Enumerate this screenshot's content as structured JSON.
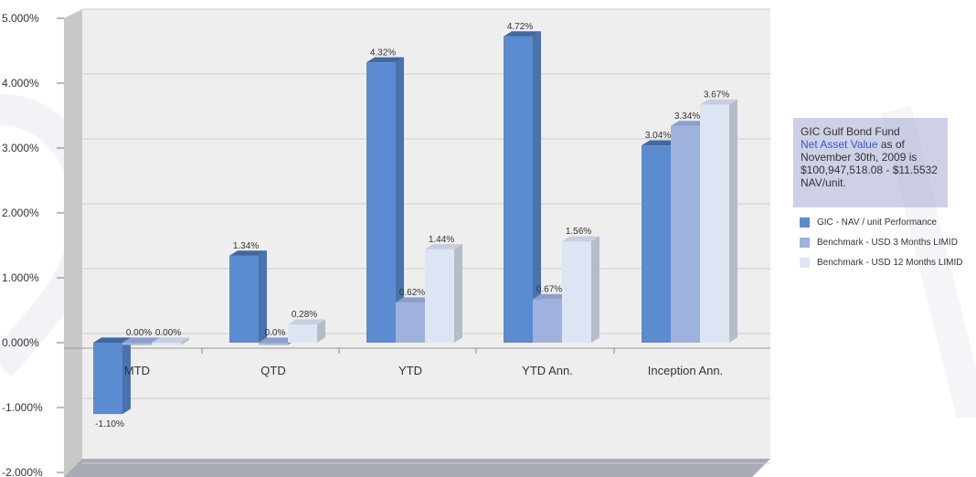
{
  "chart_data": {
    "type": "bar",
    "categories": [
      "MTD",
      "QTD",
      "YTD",
      "YTD Ann.",
      "Inception Ann."
    ],
    "series": [
      {
        "name": "GIC - NAV / unit Performance",
        "color": "#5b8bd0",
        "values": [
          -1.1,
          1.34,
          4.32,
          4.72,
          3.04
        ],
        "labels": [
          "-1.10%",
          "1.34%",
          "4.32%",
          "4.72%",
          "3.04%"
        ]
      },
      {
        "name": "Benchmark - USD 3 Months LIMID",
        "color": "#9fb2dd",
        "values": [
          0.0,
          0.0,
          0.62,
          0.67,
          3.34
        ],
        "labels": [
          "0.00%",
          "0.0%",
          "0.62%",
          "0.67%",
          "3.34%"
        ]
      },
      {
        "name": "Benchmark - USD 12 Months LIMID",
        "color": "#dde5f4",
        "values": [
          0.0,
          0.28,
          1.44,
          1.56,
          3.67
        ],
        "labels": [
          "0.00%",
          "0.28%",
          "1.44%",
          "1.56%",
          "3.67%"
        ]
      }
    ],
    "yticks": [
      "5.000%",
      "4.000%",
      "3.000%",
      "2.000%",
      "1.000%",
      "0.000%",
      "-1.000%",
      "-2.000%"
    ],
    "ylim": [
      -2,
      5
    ],
    "grid": true,
    "legend_position": "right"
  },
  "info_box": {
    "line1": "GIC Gulf Bond Fund",
    "link_text": "Net Asset Value",
    "line2_rest": " as of November 30th, 2009 is $100,947,518.08 - $11.5532 NAV/unit."
  }
}
